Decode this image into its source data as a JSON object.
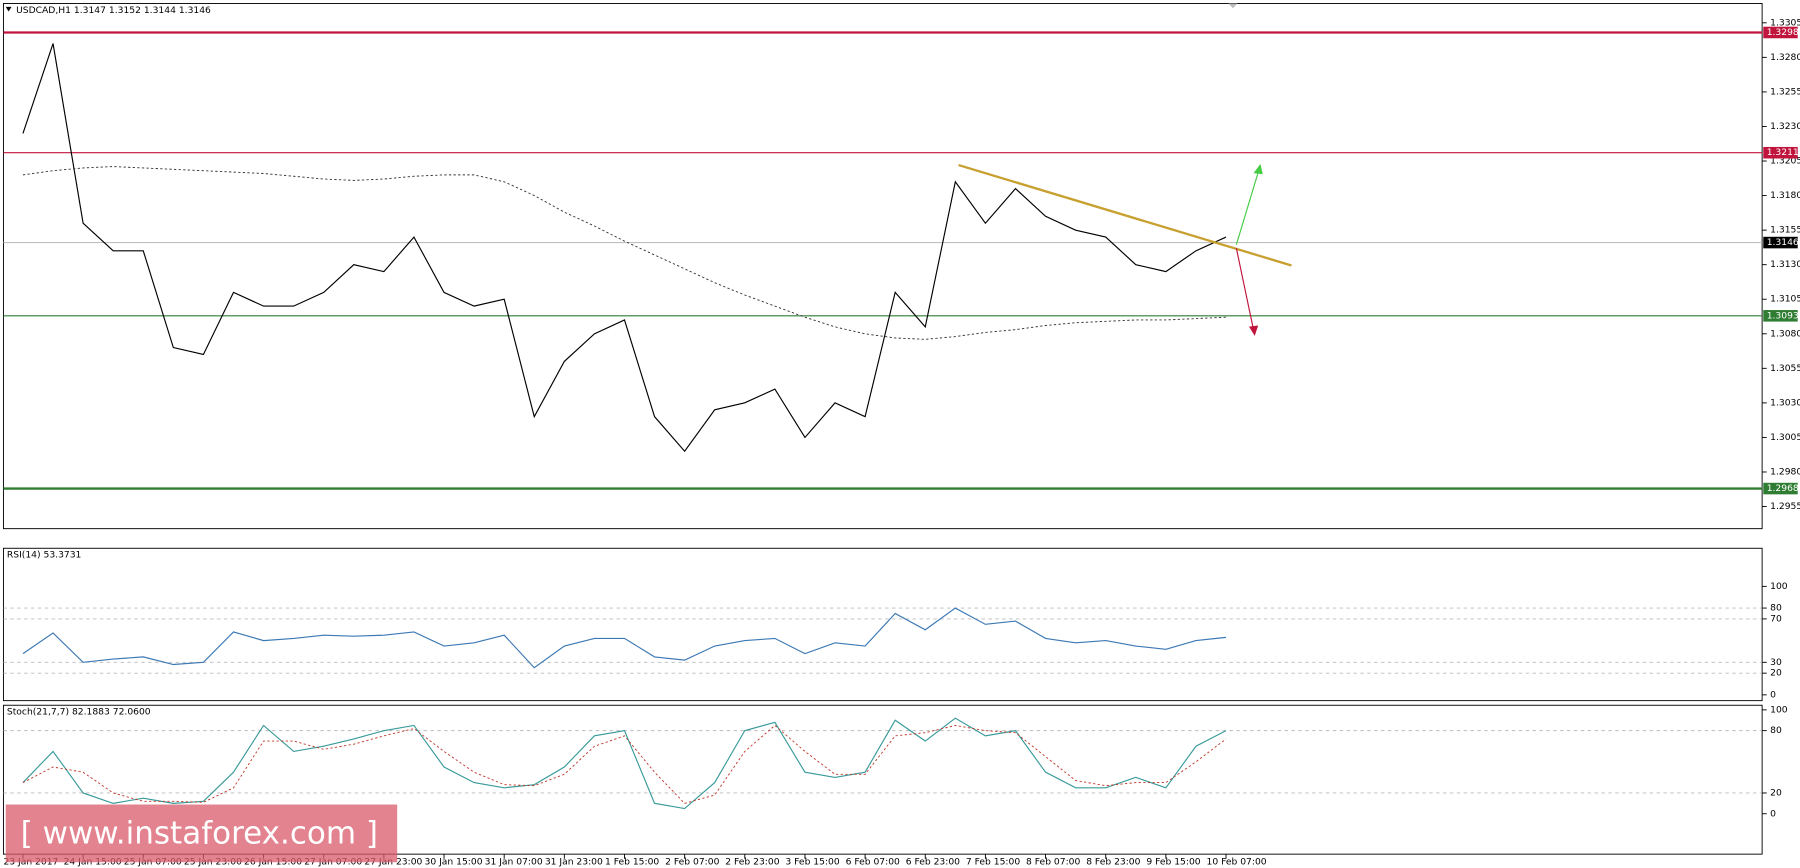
{
  "header": "USDCAD,H1  1.3147 1.3152 1.3144 1.3146",
  "watermark": "[ www.instaforex.com ]",
  "chart_data": [
    {
      "type": "line",
      "title": "USDCAD,H1  1.3147 1.3152 1.3144 1.3146",
      "categories": [
        "23 Jan 2017",
        null,
        "24 Jan 15:00",
        null,
        "25 Jan 07:00",
        null,
        "25 Jan 23:00",
        null,
        "26 Jan 15:00",
        null,
        "27 Jan 07:00",
        null,
        "27 Jan 23:00",
        null,
        "30 Jan 15:00",
        null,
        "31 Jan 07:00",
        null,
        "31 Jan 23:00",
        null,
        "1 Feb 15:00",
        null,
        "2 Feb 07:00",
        null,
        "2 Feb 23:00",
        null,
        "3 Feb 15:00",
        null,
        "6 Feb 07:00",
        null,
        "6 Feb 23:00",
        null,
        "7 Feb 15:00",
        null,
        "8 Feb 07:00",
        null,
        "8 Feb 23:00",
        null,
        "9 Feb 15:00",
        null,
        "10 Feb 07:00"
      ],
      "series": [
        {
          "color": "#000000",
          "values": [
            1.3225,
            1.329,
            1.316,
            1.314,
            1.314,
            1.307,
            1.3065,
            1.311,
            1.31,
            1.31,
            1.311,
            1.313,
            1.3125,
            1.315,
            1.311,
            1.31,
            1.3105,
            1.302,
            1.306,
            1.308,
            1.309,
            1.302,
            1.2995,
            1.3025,
            1.303,
            1.304,
            1.3005,
            1.303,
            1.302,
            1.311,
            1.3085,
            1.319,
            1.316,
            1.3185,
            1.3165,
            1.3155,
            1.315,
            1.313,
            1.3125,
            1.314,
            1.315
          ]
        },
        {
          "color": "#333333",
          "dashed": true,
          "values": [
            1.3195,
            1.3198,
            1.32,
            1.3201,
            1.32,
            1.3199,
            1.3198,
            1.3197,
            1.3196,
            1.3194,
            1.3192,
            1.3191,
            1.3192,
            1.3194,
            1.3195,
            1.3195,
            1.319,
            1.318,
            1.3168,
            1.3158,
            1.3147,
            1.3137,
            1.3127,
            1.3117,
            1.3108,
            1.31,
            1.3092,
            1.3085,
            1.308,
            1.3077,
            1.3076,
            1.3078,
            1.3081,
            1.3083,
            1.3086,
            1.3088,
            1.3089,
            1.309,
            1.309,
            1.3091,
            1.3092
          ]
        }
      ],
      "ylim": [
        1.2939,
        1.3319
      ],
      "yticks": [
        1.3305,
        {
          "value": 1.328,
          "label": "1.3280"
        },
        1.3255,
        {
          "value": 1.323,
          "label": "1.3230"
        },
        1.3205,
        {
          "value": 1.318,
          "label": "1.3180"
        },
        1.3155,
        {
          "value": 1.313,
          "label": "1.3130"
        },
        1.3105,
        {
          "value": 1.308,
          "label": "1.3080"
        },
        1.3055,
        {
          "value": 1.303,
          "label": "1.3030"
        },
        1.3005,
        {
          "value": 1.298,
          "label": "1.2980"
        },
        1.2955
      ],
      "levels": [
        {
          "value": 1.3298,
          "color": "#c0143c",
          "width": 2
        },
        {
          "value": 1.3211,
          "color": "#c0143c",
          "width": 1
        },
        {
          "value": 1.3146,
          "color": "#c0c0c0",
          "label_color": "#000000",
          "width": 1
        },
        {
          "value": 1.3093,
          "color": "#2e7d32",
          "width": 1
        },
        {
          "value": 1.2968,
          "color": "#2e7d32",
          "width": 2
        }
      ]
    },
    {
      "type": "line",
      "title": "RSI(14) 53.3731",
      "series": [
        {
          "color": "#3c78b4",
          "values": [
            38,
            57,
            30,
            33,
            35,
            28,
            30,
            58,
            50,
            52,
            55,
            54,
            55,
            58,
            45,
            48,
            55,
            25,
            45,
            52,
            52,
            35,
            32,
            45,
            50,
            52,
            38,
            48,
            45,
            75,
            60,
            80,
            65,
            68,
            52,
            48,
            50,
            45,
            42,
            50,
            53
          ]
        }
      ],
      "ylim": [
        0,
        100
      ],
      "yticks": [
        0,
        20,
        30,
        70,
        80,
        100
      ],
      "levels_dashed": [
        20,
        30,
        70,
        80
      ]
    },
    {
      "type": "line",
      "title": "Stoch(21,7,7) 82.1883 72.0600",
      "series": [
        {
          "color": "#3a9a9a",
          "values": [
            30,
            60,
            20,
            10,
            15,
            10,
            12,
            40,
            85,
            60,
            65,
            72,
            80,
            85,
            45,
            30,
            25,
            28,
            45,
            75,
            80,
            10,
            5,
            30,
            80,
            88,
            40,
            35,
            40,
            90,
            70,
            92,
            75,
            80,
            40,
            25,
            25,
            35,
            25,
            65,
            80
          ]
        },
        {
          "color": "#c0392b",
          "dashed": true,
          "values": [
            30,
            45,
            40,
            20,
            12,
            12,
            11,
            25,
            70,
            70,
            62,
            67,
            75,
            82,
            60,
            40,
            28,
            27,
            38,
            65,
            75,
            40,
            10,
            18,
            60,
            85,
            60,
            38,
            38,
            75,
            78,
            85,
            80,
            78,
            55,
            32,
            27,
            30,
            30,
            50,
            72
          ]
        }
      ],
      "ylim": [
        0,
        100
      ],
      "yticks": [
        0,
        20,
        80,
        100
      ],
      "levels_dashed": [
        20,
        80
      ]
    }
  ]
}
